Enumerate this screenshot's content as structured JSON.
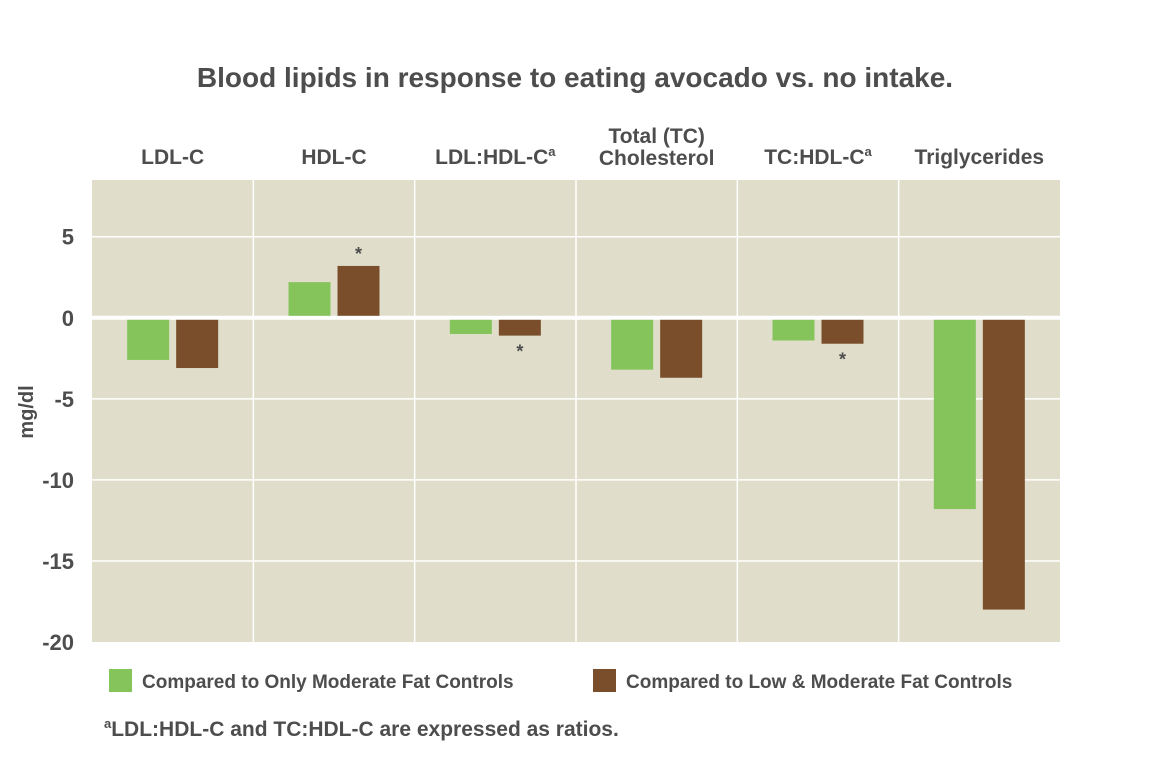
{
  "chart_data": {
    "type": "bar",
    "title": "Blood lipids in response to eating avocado vs. no intake.",
    "ylabel": "mg/dl",
    "ylim": [
      -20,
      8.5
    ],
    "yticks": [
      5,
      0,
      -5,
      -10,
      -15,
      -20
    ],
    "categories": [
      {
        "label": [
          "LDL-C"
        ],
        "sup": ""
      },
      {
        "label": [
          "HDL-C"
        ],
        "sup": ""
      },
      {
        "label": [
          "LDL:HDL-C"
        ],
        "sup": "a"
      },
      {
        "label": [
          "Total (TC)",
          "Cholesterol"
        ],
        "sup": ""
      },
      {
        "label": [
          "TC:HDL-C"
        ],
        "sup": "a"
      },
      {
        "label": [
          "Triglycerides"
        ],
        "sup": ""
      }
    ],
    "series": [
      {
        "name": "Compared to Only Moderate Fat Controls",
        "color": "#84c45b",
        "values": [
          -2.6,
          2.2,
          -1.0,
          -3.2,
          -1.4,
          -11.8
        ],
        "marks": [
          "",
          "",
          "",
          "",
          "",
          ""
        ]
      },
      {
        "name": "Compared to Low & Moderate Fat Controls",
        "color": "#7a4e2b",
        "values": [
          -3.1,
          3.2,
          -1.1,
          -3.7,
          -1.6,
          -18.0
        ],
        "marks": [
          "",
          "*",
          "*",
          "",
          "*",
          ""
        ]
      }
    ],
    "grid": true,
    "legend": "bottom",
    "footnote": {
      "sup": "a",
      "text": "LDL:HDL-C and TC:HDL-C are expressed as ratios."
    },
    "colors": {
      "plot_bg": "#e0decb",
      "grid": "#ffffff",
      "text": "#4d4d4d"
    }
  }
}
